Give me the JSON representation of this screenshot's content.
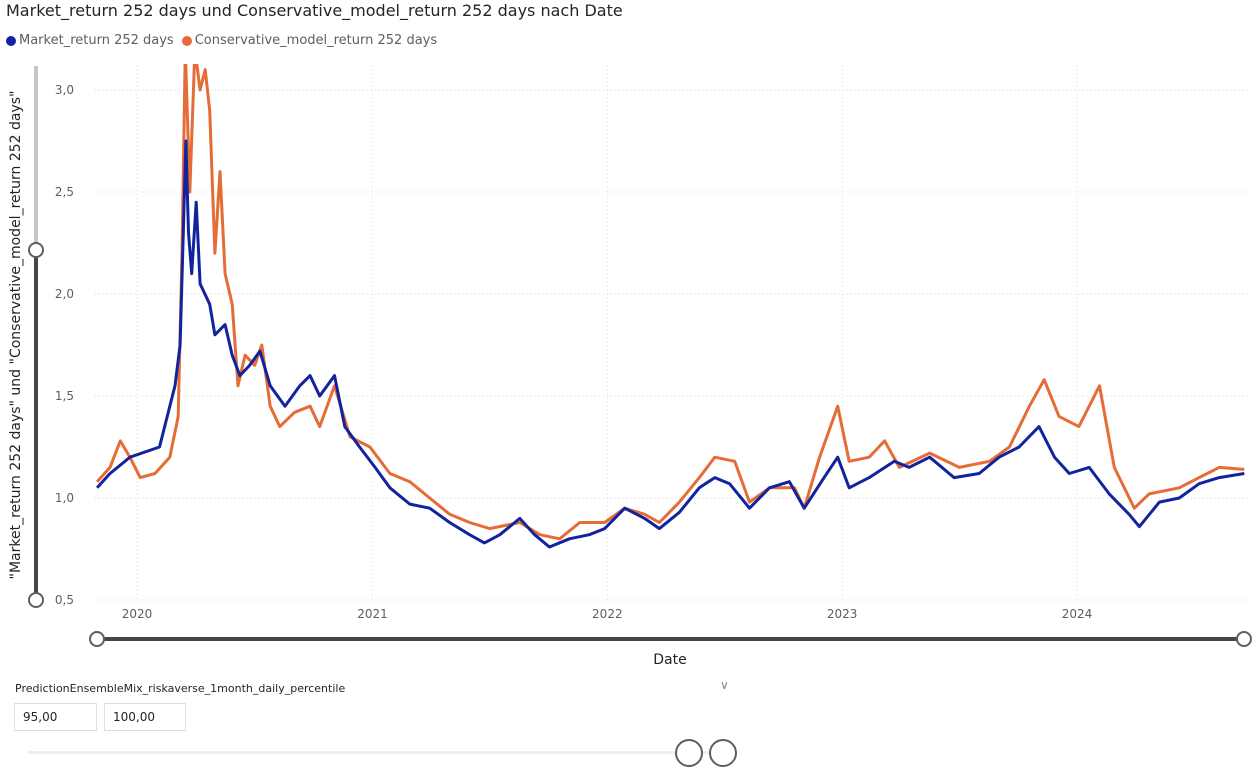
{
  "chart_data": {
    "type": "line",
    "title": "Market_return 252 days und Conservative_model_return 252 days nach Date",
    "xlabel": "Date",
    "ylabel": "\"Market_return 252 days\" und \"Conservative_model_return 252 days\"",
    "x_ticks": [
      "2020",
      "2021",
      "2022",
      "2023",
      "2024"
    ],
    "y_ticks": [
      "0,5",
      "1,0",
      "1,5",
      "2,0",
      "2,5",
      "3,0"
    ],
    "y_tick_values": [
      0.5,
      1.0,
      1.5,
      2.0,
      2.5,
      3.0
    ],
    "xlim": [
      "2019-10-28",
      "2024-09-20"
    ],
    "ylim": [
      0.5,
      3.12
    ],
    "grid": true,
    "legend_position": "top-left",
    "series": [
      {
        "name": "Market_return 252 days",
        "color": "#12239e",
        "points": [
          [
            "2019-10-31",
            1.05
          ],
          [
            "2019-11-20",
            1.12
          ],
          [
            "2019-12-21",
            1.2
          ],
          [
            "2020-02-05",
            1.25
          ],
          [
            "2020-02-29",
            1.55
          ],
          [
            "2020-03-08",
            1.75
          ],
          [
            "2020-03-17",
            2.75
          ],
          [
            "2020-03-21",
            2.3
          ],
          [
            "2020-03-26",
            2.1
          ],
          [
            "2020-04-02",
            2.45
          ],
          [
            "2020-04-08",
            2.05
          ],
          [
            "2020-04-23",
            1.95
          ],
          [
            "2020-05-01",
            1.8
          ],
          [
            "2020-05-17",
            1.85
          ],
          [
            "2020-05-28",
            1.7
          ],
          [
            "2020-06-09",
            1.6
          ],
          [
            "2020-06-24",
            1.65
          ],
          [
            "2020-07-10",
            1.72
          ],
          [
            "2020-07-26",
            1.55
          ],
          [
            "2020-08-18",
            1.45
          ],
          [
            "2020-09-10",
            1.55
          ],
          [
            "2020-09-26",
            1.6
          ],
          [
            "2020-10-11",
            1.5
          ],
          [
            "2020-11-03",
            1.6
          ],
          [
            "2020-11-19",
            1.35
          ],
          [
            "2020-12-12",
            1.25
          ],
          [
            "2021-01-05",
            1.15
          ],
          [
            "2021-01-28",
            1.05
          ],
          [
            "2021-02-28",
            0.97
          ],
          [
            "2021-03-31",
            0.95
          ],
          [
            "2021-05-01",
            0.88
          ],
          [
            "2021-06-01",
            0.82
          ],
          [
            "2021-06-24",
            0.78
          ],
          [
            "2021-07-18",
            0.82
          ],
          [
            "2021-08-18",
            0.9
          ],
          [
            "2021-09-10",
            0.82
          ],
          [
            "2021-10-03",
            0.76
          ],
          [
            "2021-11-03",
            0.8
          ],
          [
            "2021-12-04",
            0.82
          ],
          [
            "2021-12-28",
            0.85
          ],
          [
            "2022-01-28",
            0.95
          ],
          [
            "2022-02-28",
            0.9
          ],
          [
            "2022-03-23",
            0.85
          ],
          [
            "2022-04-23",
            0.93
          ],
          [
            "2022-05-24",
            1.05
          ],
          [
            "2022-06-17",
            1.1
          ],
          [
            "2022-07-10",
            1.07
          ],
          [
            "2022-08-10",
            0.95
          ],
          [
            "2022-09-10",
            1.05
          ],
          [
            "2022-10-11",
            1.08
          ],
          [
            "2022-11-03",
            0.95
          ],
          [
            "2022-12-04",
            1.1
          ],
          [
            "2022-12-25",
            1.2
          ],
          [
            "2023-01-12",
            1.05
          ],
          [
            "2023-02-12",
            1.1
          ],
          [
            "2023-03-23",
            1.18
          ],
          [
            "2023-04-15",
            1.15
          ],
          [
            "2023-05-17",
            1.2
          ],
          [
            "2023-06-24",
            1.1
          ],
          [
            "2023-08-02",
            1.12
          ],
          [
            "2023-09-02",
            1.2
          ],
          [
            "2023-10-03",
            1.25
          ],
          [
            "2023-11-03",
            1.35
          ],
          [
            "2023-11-27",
            1.2
          ],
          [
            "2023-12-20",
            1.12
          ],
          [
            "2024-01-20",
            1.15
          ],
          [
            "2024-02-20",
            1.02
          ],
          [
            "2024-03-22",
            0.92
          ],
          [
            "2024-04-07",
            0.86
          ],
          [
            "2024-05-08",
            0.98
          ],
          [
            "2024-06-08",
            1.0
          ],
          [
            "2024-07-09",
            1.07
          ],
          [
            "2024-08-09",
            1.1
          ],
          [
            "2024-09-17",
            1.12
          ]
        ]
      },
      {
        "name": "Conservative_model_return 252 days",
        "color": "#e66c37",
        "points": [
          [
            "2019-10-31",
            1.08
          ],
          [
            "2019-11-20",
            1.15
          ],
          [
            "2019-12-06",
            1.28
          ],
          [
            "2019-12-21",
            1.2
          ],
          [
            "2020-01-06",
            1.1
          ],
          [
            "2020-01-29",
            1.12
          ],
          [
            "2020-02-21",
            1.2
          ],
          [
            "2020-03-05",
            1.4
          ],
          [
            "2020-03-11",
            2.2
          ],
          [
            "2020-03-16",
            3.2
          ],
          [
            "2020-03-23",
            2.5
          ],
          [
            "2020-03-31",
            3.2
          ],
          [
            "2020-04-08",
            3.0
          ],
          [
            "2020-04-16",
            3.1
          ],
          [
            "2020-04-23",
            2.9
          ],
          [
            "2020-05-01",
            2.2
          ],
          [
            "2020-05-09",
            2.6
          ],
          [
            "2020-05-17",
            2.1
          ],
          [
            "2020-05-28",
            1.95
          ],
          [
            "2020-06-06",
            1.55
          ],
          [
            "2020-06-17",
            1.7
          ],
          [
            "2020-07-02",
            1.65
          ],
          [
            "2020-07-13",
            1.75
          ],
          [
            "2020-07-26",
            1.45
          ],
          [
            "2020-08-10",
            1.35
          ],
          [
            "2020-09-02",
            1.42
          ],
          [
            "2020-09-26",
            1.45
          ],
          [
            "2020-10-11",
            1.35
          ],
          [
            "2020-11-03",
            1.55
          ],
          [
            "2020-11-27",
            1.3
          ],
          [
            "2020-12-28",
            1.25
          ],
          [
            "2021-01-28",
            1.12
          ],
          [
            "2021-02-28",
            1.08
          ],
          [
            "2021-03-31",
            1.0
          ],
          [
            "2021-05-01",
            0.92
          ],
          [
            "2021-06-01",
            0.88
          ],
          [
            "2021-07-02",
            0.85
          ],
          [
            "2021-08-18",
            0.88
          ],
          [
            "2021-09-18",
            0.82
          ],
          [
            "2021-10-19",
            0.8
          ],
          [
            "2021-11-19",
            0.88
          ],
          [
            "2021-12-28",
            0.88
          ],
          [
            "2022-01-28",
            0.95
          ],
          [
            "2022-02-28",
            0.92
          ],
          [
            "2022-03-23",
            0.88
          ],
          [
            "2022-04-23",
            0.98
          ],
          [
            "2022-05-24",
            1.1
          ],
          [
            "2022-06-17",
            1.2
          ],
          [
            "2022-07-18",
            1.18
          ],
          [
            "2022-08-10",
            0.98
          ],
          [
            "2022-09-10",
            1.05
          ],
          [
            "2022-10-19",
            1.05
          ],
          [
            "2022-11-03",
            0.95
          ],
          [
            "2022-11-27",
            1.2
          ],
          [
            "2022-12-25",
            1.45
          ],
          [
            "2023-01-12",
            1.18
          ],
          [
            "2023-02-12",
            1.2
          ],
          [
            "2023-03-08",
            1.28
          ],
          [
            "2023-03-31",
            1.15
          ],
          [
            "2023-05-17",
            1.22
          ],
          [
            "2023-07-02",
            1.15
          ],
          [
            "2023-08-18",
            1.18
          ],
          [
            "2023-09-18",
            1.25
          ],
          [
            "2023-10-19",
            1.45
          ],
          [
            "2023-11-11",
            1.58
          ],
          [
            "2023-12-04",
            1.4
          ],
          [
            "2024-01-04",
            1.35
          ],
          [
            "2024-02-05",
            1.55
          ],
          [
            "2024-02-28",
            1.15
          ],
          [
            "2024-03-30",
            0.95
          ],
          [
            "2024-04-22",
            1.02
          ],
          [
            "2024-06-08",
            1.05
          ],
          [
            "2024-07-09",
            1.1
          ],
          [
            "2024-08-09",
            1.15
          ],
          [
            "2024-09-17",
            1.14
          ]
        ]
      }
    ]
  },
  "legend": [
    "Market_return 252 days",
    "Conservative_model_return 252 days"
  ],
  "slicer": {
    "title": "PredictionEnsembleMix_riskaverse_1month_daily_percentile",
    "min_value": "95,00",
    "max_value": "100,00",
    "range_fraction": [
      0.95,
      1.0
    ],
    "chevron_icon": "chevron-down-icon"
  }
}
